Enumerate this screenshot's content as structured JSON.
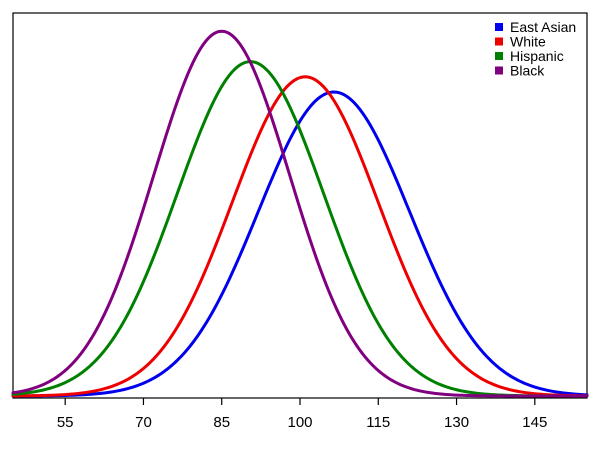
{
  "chart_data": {
    "type": "line",
    "title": "",
    "xlabel": "",
    "ylabel": "",
    "xlim": [
      45,
      155
    ],
    "ylim": [
      0,
      1
    ],
    "grid": false,
    "legend_position": "top-right",
    "x_ticks": [
      55,
      70,
      85,
      100,
      115,
      130,
      145
    ],
    "x_tick_labels": [
      "55",
      "70",
      "85",
      "100",
      "115",
      "130",
      "145"
    ],
    "series": [
      {
        "name": "East Asian",
        "color": "#0000ee",
        "mean": 106.5,
        "sd": 14.5,
        "peak": 0.8
      },
      {
        "name": "White",
        "color": "#ee0000",
        "mean": 101.0,
        "sd": 14.0,
        "peak": 0.84
      },
      {
        "name": "Hispanic",
        "color": "#008000",
        "mean": 90.5,
        "sd": 14.0,
        "peak": 0.88
      },
      {
        "name": "Black",
        "color": "#800080",
        "mean": 85.0,
        "sd": 13.0,
        "peak": 0.96
      }
    ]
  }
}
